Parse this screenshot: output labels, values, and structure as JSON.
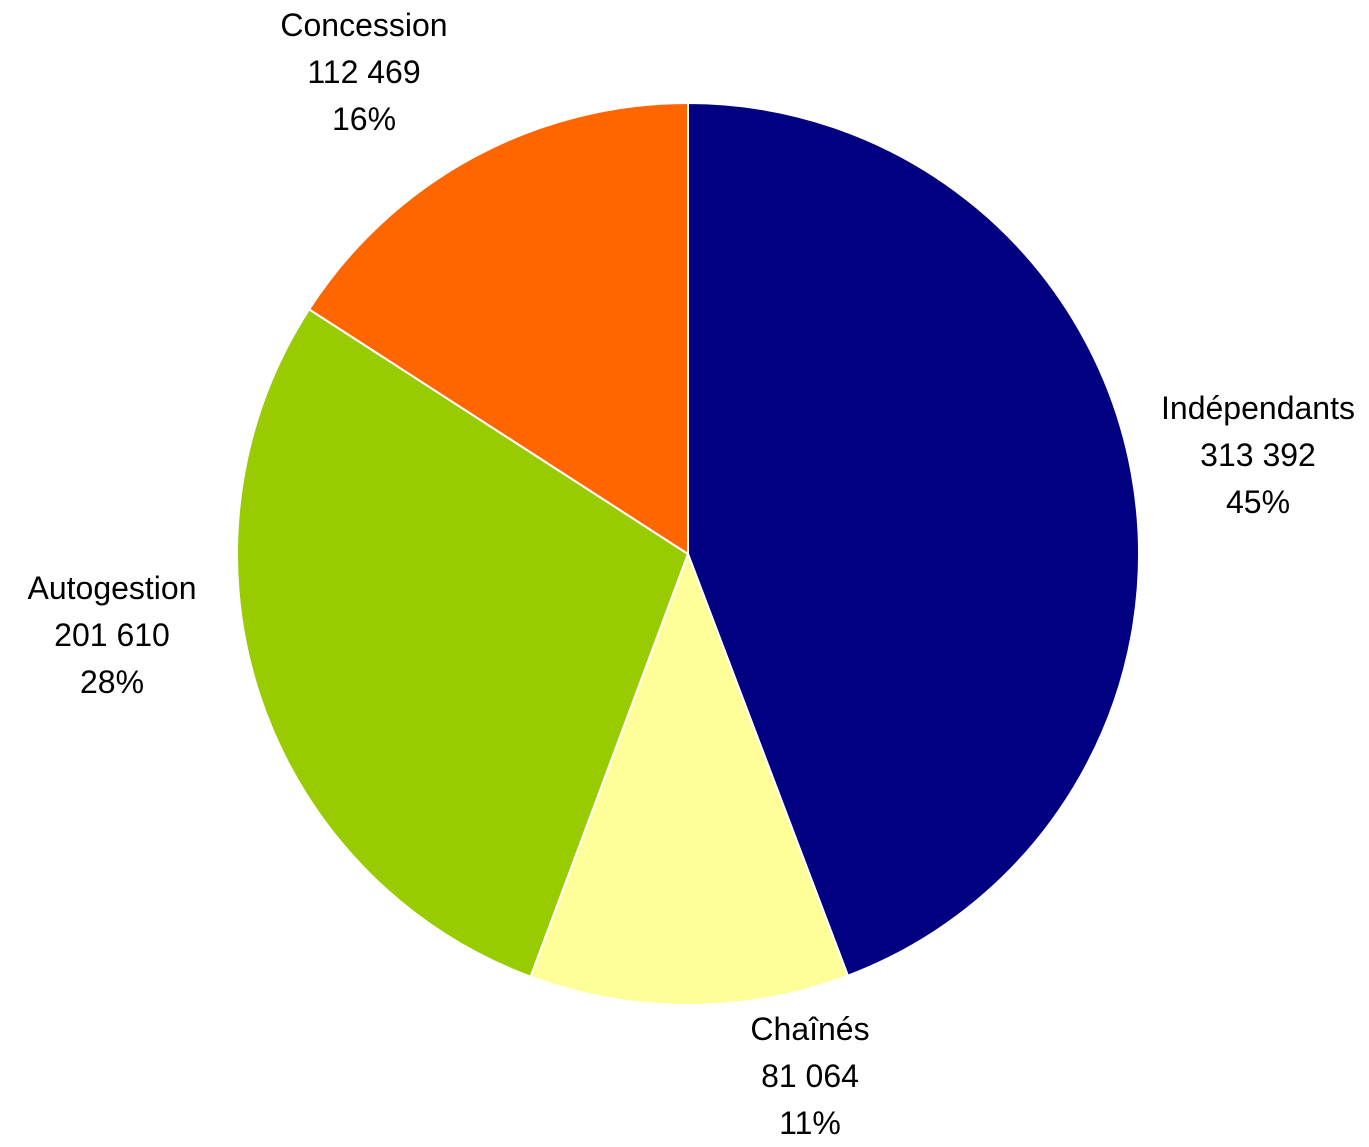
{
  "chart_data": {
    "type": "pie",
    "start_angle_deg": 0,
    "direction": "clockwise",
    "slice_border_color": "#ffffff",
    "slices": [
      {
        "name": "Indépendants",
        "value_label": "313 392",
        "percent_label": "45%",
        "value": 313392,
        "color": "#000080"
      },
      {
        "name": "Chaînés",
        "value_label": "81 064",
        "percent_label": "11%",
        "value": 81064,
        "color": "#ffff99"
      },
      {
        "name": "Autogestion",
        "value_label": "201 610",
        "percent_label": "28%",
        "value": 201610,
        "color": "#99cc00"
      },
      {
        "name": "Concession",
        "value_label": "112 469",
        "percent_label": "16%",
        "value": 112469,
        "color": "#ff6600"
      }
    ]
  }
}
